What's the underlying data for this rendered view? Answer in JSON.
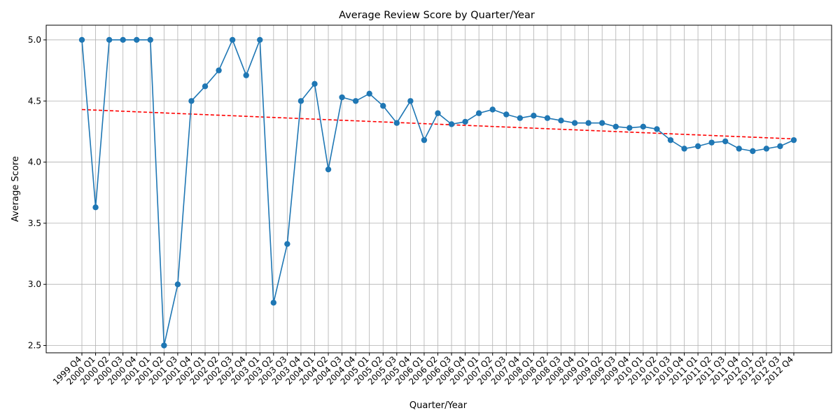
{
  "chart_data": {
    "type": "line",
    "title": "Average Review Score by Quarter/Year",
    "xlabel": "Quarter/Year",
    "ylabel": "Average Score",
    "ylim": [
      2.44,
      5.12
    ],
    "yticks": [
      "2.5",
      "3.0",
      "3.5",
      "4.0",
      "4.5",
      "5.0"
    ],
    "ytick_values": [
      2.5,
      3.0,
      3.5,
      4.0,
      4.5,
      5.0
    ],
    "grid": true,
    "categories": [
      "1999 Q4",
      "2000 Q1",
      "2000 Q2",
      "2000 Q3",
      "2000 Q4",
      "2001 Q1",
      "2001 Q2",
      "2001 Q3",
      "2001 Q4",
      "2002 Q1",
      "2002 Q2",
      "2002 Q3",
      "2002 Q4",
      "2003 Q1",
      "2003 Q2",
      "2003 Q3",
      "2003 Q4",
      "2004 Q1",
      "2004 Q2",
      "2004 Q3",
      "2004 Q4",
      "2005 Q1",
      "2005 Q2",
      "2005 Q3",
      "2005 Q4",
      "2006 Q1",
      "2006 Q2",
      "2006 Q3",
      "2006 Q4",
      "2007 Q1",
      "2007 Q2",
      "2007 Q3",
      "2007 Q4",
      "2008 Q1",
      "2008 Q2",
      "2008 Q3",
      "2008 Q4",
      "2009 Q1",
      "2009 Q2",
      "2009 Q3",
      "2009 Q4",
      "2010 Q1",
      "2010 Q2",
      "2010 Q3",
      "2010 Q4",
      "2011 Q1",
      "2011 Q2",
      "2011 Q3",
      "2011 Q4",
      "2012 Q1",
      "2012 Q2",
      "2012 Q3",
      "2012 Q4"
    ],
    "series": [
      {
        "name": "Average Score",
        "color": "#1f77b4",
        "values": [
          5.0,
          3.63,
          5.0,
          5.0,
          5.0,
          5.0,
          2.5,
          3.0,
          4.5,
          4.62,
          4.75,
          5.0,
          4.71,
          5.0,
          2.85,
          3.33,
          4.5,
          4.64,
          3.94,
          4.53,
          4.5,
          4.56,
          4.46,
          4.32,
          4.5,
          4.18,
          4.4,
          4.31,
          4.33,
          4.4,
          4.43,
          4.39,
          4.36,
          4.38,
          4.36,
          4.34,
          4.32,
          4.32,
          4.32,
          4.29,
          4.28,
          4.29,
          4.27,
          4.18,
          4.11,
          4.13,
          4.16,
          4.17,
          4.11,
          4.09,
          4.11,
          4.13,
          4.18
        ]
      }
    ],
    "trendline": {
      "name": "Trend",
      "color": "#ff0000",
      "start": 4.43,
      "end": 4.19
    }
  }
}
